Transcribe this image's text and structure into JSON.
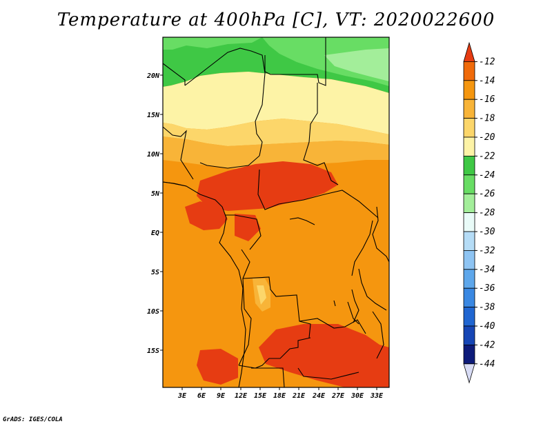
{
  "title": "Temperature at 400hPa [C], VT: 2020022600",
  "credit": "GrADS: IGES/COLA",
  "lat_labels": [
    "20N",
    "15N",
    "10N",
    "5N",
    "EQ",
    "5S",
    "10S",
    "15S"
  ],
  "lon_labels": [
    "3E",
    "6E",
    "9E",
    "12E",
    "15E",
    "18E",
    "21E",
    "24E",
    "27E",
    "30E",
    "33E"
  ],
  "colorbar": {
    "labels": [
      "-12",
      "-14",
      "-16",
      "-18",
      "-20",
      "-22",
      "-24",
      "-26",
      "-28",
      "-30",
      "-32",
      "-34",
      "-36",
      "-38",
      "-40",
      "-42",
      "-44"
    ],
    "colors": [
      "#e63c12",
      "#f06a0a",
      "#f5960f",
      "#f8b438",
      "#fcd66a",
      "#fdf3a6",
      "#3fc845",
      "#68dd64",
      "#a3ee9a",
      "#e9fbf8",
      "#b5dcf6",
      "#8ec4f3",
      "#5ea7eb",
      "#3a88e2",
      "#2066d1",
      "#1646b5",
      "#0d1b7a",
      "#d8dcf5"
    ]
  }
}
